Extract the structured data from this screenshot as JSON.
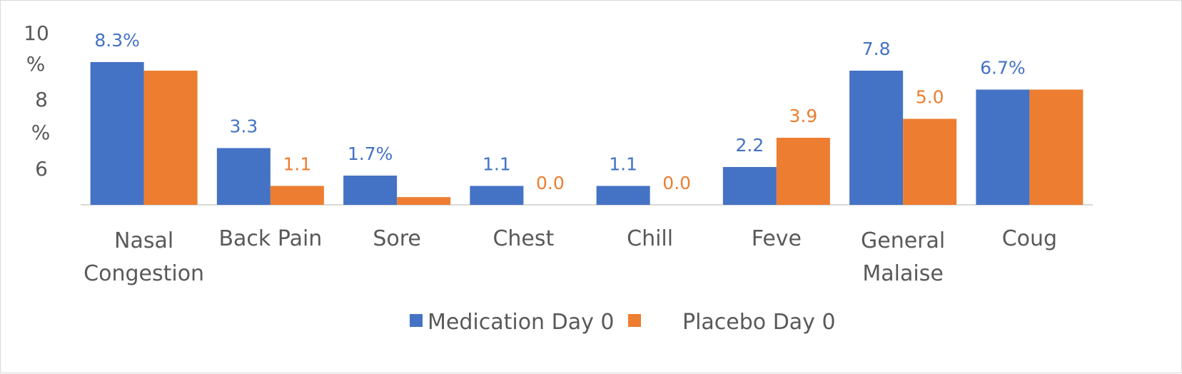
{
  "chart_data": {
    "type": "bar",
    "title": "",
    "xlabel": "",
    "ylabel": "",
    "y_tick_labels": [
      {
        "value": 10,
        "lines": [
          "10",
          "%"
        ]
      },
      {
        "value": 8,
        "lines": [
          "8",
          "%"
        ]
      },
      {
        "value": 6,
        "lines": [
          "6"
        ]
      }
    ],
    "categories": [
      [
        "Nasal",
        "Congestion"
      ],
      [
        "Back Pain"
      ],
      [
        "Sore"
      ],
      [
        "Chest"
      ],
      [
        "Chill"
      ],
      [
        "Feve"
      ],
      [
        "General",
        "Malaise"
      ],
      [
        "Coug"
      ]
    ],
    "series": [
      {
        "name": "Medication Day 0",
        "color": "#4472c4",
        "values": [
          8.3,
          3.3,
          1.7,
          1.1,
          1.1,
          2.2,
          7.8,
          6.7
        ],
        "labels": [
          "8.3%",
          "3.3",
          "1.7%",
          "1.1",
          "1.1",
          "2.2",
          "7.8",
          "6.7%"
        ]
      },
      {
        "name": "Placebo Day 0",
        "color": "#ed7d31",
        "values": [
          7.8,
          1.1,
          0.45,
          0.0,
          0.0,
          3.9,
          5.0,
          6.7
        ],
        "labels": [
          "",
          "1.1",
          "",
          "0.0",
          "0.0",
          "3.9",
          "5.0",
          ""
        ]
      }
    ],
    "legend_position": "bottom",
    "grid": false
  }
}
